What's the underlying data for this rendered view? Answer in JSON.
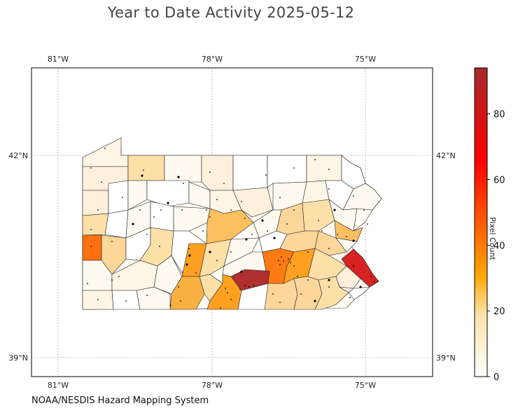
{
  "title": "Year to Date Activity 2025-05-12",
  "footer": "NOAA/NESDIS Hazard Mapping System",
  "colorbar": {
    "label": "Pixel Count",
    "ticks": [
      "0",
      "20",
      "40",
      "60",
      "80"
    ],
    "tick_values": [
      0,
      20,
      40,
      60,
      80
    ],
    "max": 94,
    "colors": [
      "#ffffff",
      "#ffe0a0",
      "#ffa500",
      "#ff4500",
      "#ff0000",
      "#a52a2a"
    ]
  },
  "axes": {
    "lon_ticks": [
      "81°W",
      "78°W",
      "75°W"
    ],
    "lat_ticks": [
      "42°N",
      "39°N"
    ]
  },
  "map_data": {
    "region": "Pennsylvania counties",
    "lon_range": [
      -81.5,
      -73.6
    ],
    "lat_range": [
      38.7,
      43.3
    ],
    "highlights": [
      {
        "level": 94,
        "color": "#b03030"
      },
      {
        "level": 75,
        "color": "#d62222"
      },
      {
        "level": 40,
        "color": "#ff7010"
      },
      {
        "level": 38,
        "color": "#ff7a12"
      },
      {
        "level": 28,
        "color": "#ffa020"
      },
      {
        "level": 25,
        "color": "#f8b040"
      },
      {
        "level": 22,
        "color": "#fcc060"
      },
      {
        "level": 15,
        "color": "#fdd69a"
      }
    ]
  }
}
